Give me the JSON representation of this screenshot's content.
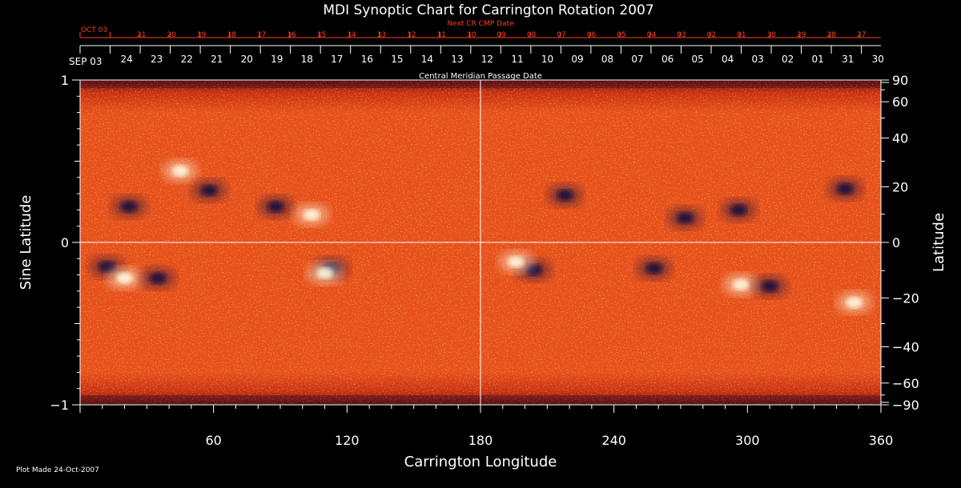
{
  "chart_data": {
    "type": "heatmap",
    "title": "MDI Synoptic Chart for Carrington Rotation 2007",
    "xlabel": "Carrington Longitude",
    "ylabel_left": "Sine Latitude",
    "ylabel_right": "Latitude",
    "xlim": [
      0,
      360
    ],
    "ylim": [
      -1,
      1
    ],
    "x_ticks": [
      60,
      120,
      180,
      240,
      300,
      360
    ],
    "y_ticks_left": [
      "1",
      "0",
      "−1"
    ],
    "y_ticks_left_values": [
      1,
      0,
      -1
    ],
    "y_ticks_right": [
      90,
      60,
      40,
      20,
      0,
      -20,
      -40,
      -60,
      -90
    ],
    "y_ticks_right_labels": [
      "90",
      "60",
      "40",
      "20",
      "0",
      "−20",
      "−40",
      "−60",
      "−90"
    ],
    "top_axis_label": "Central Meridian Passage Date",
    "top_axis_start": "SEP 03",
    "top_axis_dates": [
      "24",
      "23",
      "22",
      "21",
      "20",
      "19",
      "18",
      "17",
      "16",
      "15",
      "14",
      "13",
      "12",
      "11",
      "10",
      "09",
      "08",
      "07",
      "06",
      "05",
      "04",
      "03",
      "02",
      "01",
      "31",
      "30"
    ],
    "next_cr_label": "Next CR CMP Date",
    "next_cr_start": "OCT 03",
    "next_cr_dates": [
      "21",
      "20",
      "19",
      "18",
      "17",
      "16",
      "15",
      "14",
      "13",
      "12",
      "11",
      "10",
      "09",
      "08",
      "07",
      "06",
      "05",
      "04",
      "03",
      "02",
      "01",
      "30",
      "29",
      "28",
      "27"
    ],
    "footer": "Plot Made 24-Oct-2007",
    "gridlines": {
      "vertical_at_longitude": 180,
      "horizontal_at_sine_latitude": 0
    },
    "colors": {
      "background": "#000000",
      "field_base": "#e8501a",
      "positive_polarity": "#fffbe0",
      "negative_polarity": "#141040"
    },
    "active_regions": [
      {
        "lon": 58,
        "sinlat": 0.32,
        "polarity": "negative"
      },
      {
        "lon": 45,
        "sinlat": 0.44,
        "polarity": "positive"
      },
      {
        "lon": 88,
        "sinlat": 0.22,
        "polarity": "negative"
      },
      {
        "lon": 104,
        "sinlat": 0.17,
        "polarity": "positive"
      },
      {
        "lon": 22,
        "sinlat": 0.22,
        "polarity": "negative"
      },
      {
        "lon": 12,
        "sinlat": -0.15,
        "polarity": "negative"
      },
      {
        "lon": 20,
        "sinlat": -0.22,
        "polarity": "positive"
      },
      {
        "lon": 35,
        "sinlat": -0.22,
        "polarity": "negative"
      },
      {
        "lon": 113,
        "sinlat": -0.16,
        "polarity": "negative"
      },
      {
        "lon": 110,
        "sinlat": -0.19,
        "polarity": "positive"
      },
      {
        "lon": 204,
        "sinlat": -0.17,
        "polarity": "negative"
      },
      {
        "lon": 196,
        "sinlat": -0.12,
        "polarity": "positive"
      },
      {
        "lon": 218,
        "sinlat": 0.29,
        "polarity": "negative"
      },
      {
        "lon": 297,
        "sinlat": -0.26,
        "polarity": "positive"
      },
      {
        "lon": 310,
        "sinlat": -0.27,
        "polarity": "negative"
      },
      {
        "lon": 344,
        "sinlat": 0.33,
        "polarity": "negative"
      },
      {
        "lon": 348,
        "sinlat": -0.37,
        "polarity": "positive"
      },
      {
        "lon": 258,
        "sinlat": -0.16,
        "polarity": "negative"
      },
      {
        "lon": 272,
        "sinlat": 0.15,
        "polarity": "negative"
      },
      {
        "lon": 296,
        "sinlat": 0.2,
        "polarity": "negative"
      }
    ]
  }
}
